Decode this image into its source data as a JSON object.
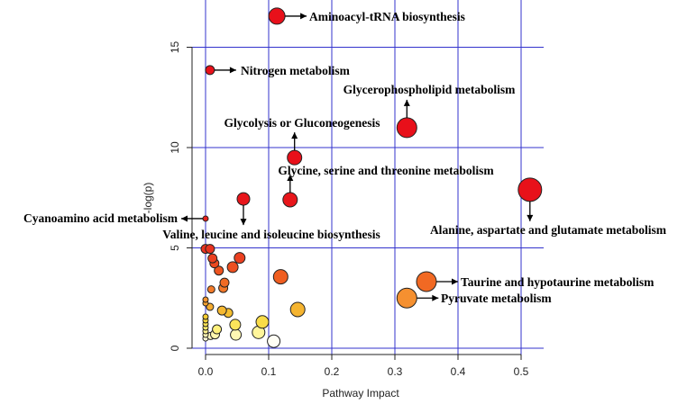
{
  "chart_data": {
    "type": "scatter",
    "title": "",
    "xlabel": "Pathway Impact",
    "ylabel": "-log(p)",
    "xlim": [
      0,
      0.5
    ],
    "ylim": [
      0,
      15
    ],
    "xticks": [
      "0.0",
      "0.1",
      "0.2",
      "0.3",
      "0.4",
      "0.5"
    ],
    "xtick_values": [
      0,
      0.1,
      0.2,
      0.3,
      0.4,
      0.5
    ],
    "yticks": [
      "0",
      "5",
      "10",
      "15"
    ],
    "ytick_values": [
      0,
      5,
      10,
      15
    ],
    "grid": true,
    "grid_color": "#3333cc",
    "color_scale": [
      [
        0.3,
        "#ffffff"
      ],
      [
        1.0,
        "#fff070"
      ],
      [
        1.5,
        "#f5d030"
      ],
      [
        2.5,
        "#f59030"
      ],
      [
        3.5,
        "#f06020"
      ],
      [
        5.0,
        "#e83020"
      ],
      [
        8.0,
        "#e8101a"
      ]
    ],
    "labeled_points": [
      {
        "label": "Aminoacyl-tRNA biosynthesis",
        "x": 0.113,
        "y": 16.55,
        "size": 9,
        "arrow": "right"
      },
      {
        "label": "Nitrogen metabolism",
        "x": 0.007,
        "y": 13.86,
        "size": 5,
        "arrow": "right"
      },
      {
        "label": "Glycerophospholipid metabolism",
        "x": 0.319,
        "y": 10.99,
        "size": 11,
        "arrow": "up"
      },
      {
        "label": "Glycolysis or Gluconeogenesis",
        "x": 0.141,
        "y": 9.5,
        "size": 8,
        "arrow": "up"
      },
      {
        "label": "Glycine, serine and threonine metabolism",
        "x": 0.134,
        "y": 7.4,
        "size": 8,
        "arrow": "up"
      },
      {
        "label": "Valine, leucine and isoleucine biosynthesis",
        "x": 0.06,
        "y": 7.44,
        "size": 7,
        "arrow": "down"
      },
      {
        "label": "Alanine, aspartate and glutamate metabolism",
        "x": 0.514,
        "y": 7.9,
        "size": 13,
        "arrow": "down"
      },
      {
        "label": "Cyanoamino acid metabolism",
        "x": 0.0,
        "y": 6.46,
        "size": 3,
        "arrow": "left"
      },
      {
        "label": "Taurine and hypotaurine metabolism",
        "x": 0.35,
        "y": 3.32,
        "size": 11,
        "arrow": "right"
      },
      {
        "label": "Pyruvate metabolism",
        "x": 0.319,
        "y": 2.5,
        "size": 11,
        "arrow": "right"
      }
    ],
    "points": [
      [
        0.0,
        4.95,
        5
      ],
      [
        0.007,
        4.95,
        5
      ],
      [
        0.011,
        4.48,
        5
      ],
      [
        0.014,
        4.23,
        5
      ],
      [
        0.021,
        3.87,
        5
      ],
      [
        0.043,
        4.04,
        6
      ],
      [
        0.054,
        4.5,
        6
      ],
      [
        0.119,
        3.56,
        8
      ],
      [
        0.03,
        3.27,
        5
      ],
      [
        0.028,
        3.0,
        5
      ],
      [
        0.009,
        2.93,
        4
      ],
      [
        0.0,
        2.42,
        3
      ],
      [
        0.0,
        2.24,
        3
      ],
      [
        0.007,
        2.06,
        4
      ],
      [
        0.026,
        1.88,
        5
      ],
      [
        0.036,
        1.76,
        5
      ],
      [
        0.146,
        1.93,
        8
      ],
      [
        0.09,
        1.31,
        7
      ],
      [
        0.047,
        1.17,
        6
      ],
      [
        0.084,
        0.79,
        7
      ],
      [
        0.048,
        0.67,
        6
      ],
      [
        0.108,
        0.35,
        7
      ],
      [
        0.018,
        0.94,
        5
      ],
      [
        0.015,
        0.69,
        5
      ],
      [
        0.008,
        0.61,
        4
      ],
      [
        0.0,
        1.57,
        3
      ],
      [
        0.0,
        1.39,
        3
      ],
      [
        0.0,
        1.21,
        3
      ],
      [
        0.0,
        1.03,
        3
      ],
      [
        0.0,
        0.85,
        3
      ],
      [
        0.0,
        0.67,
        3
      ],
      [
        0.0,
        0.49,
        3
      ]
    ]
  }
}
